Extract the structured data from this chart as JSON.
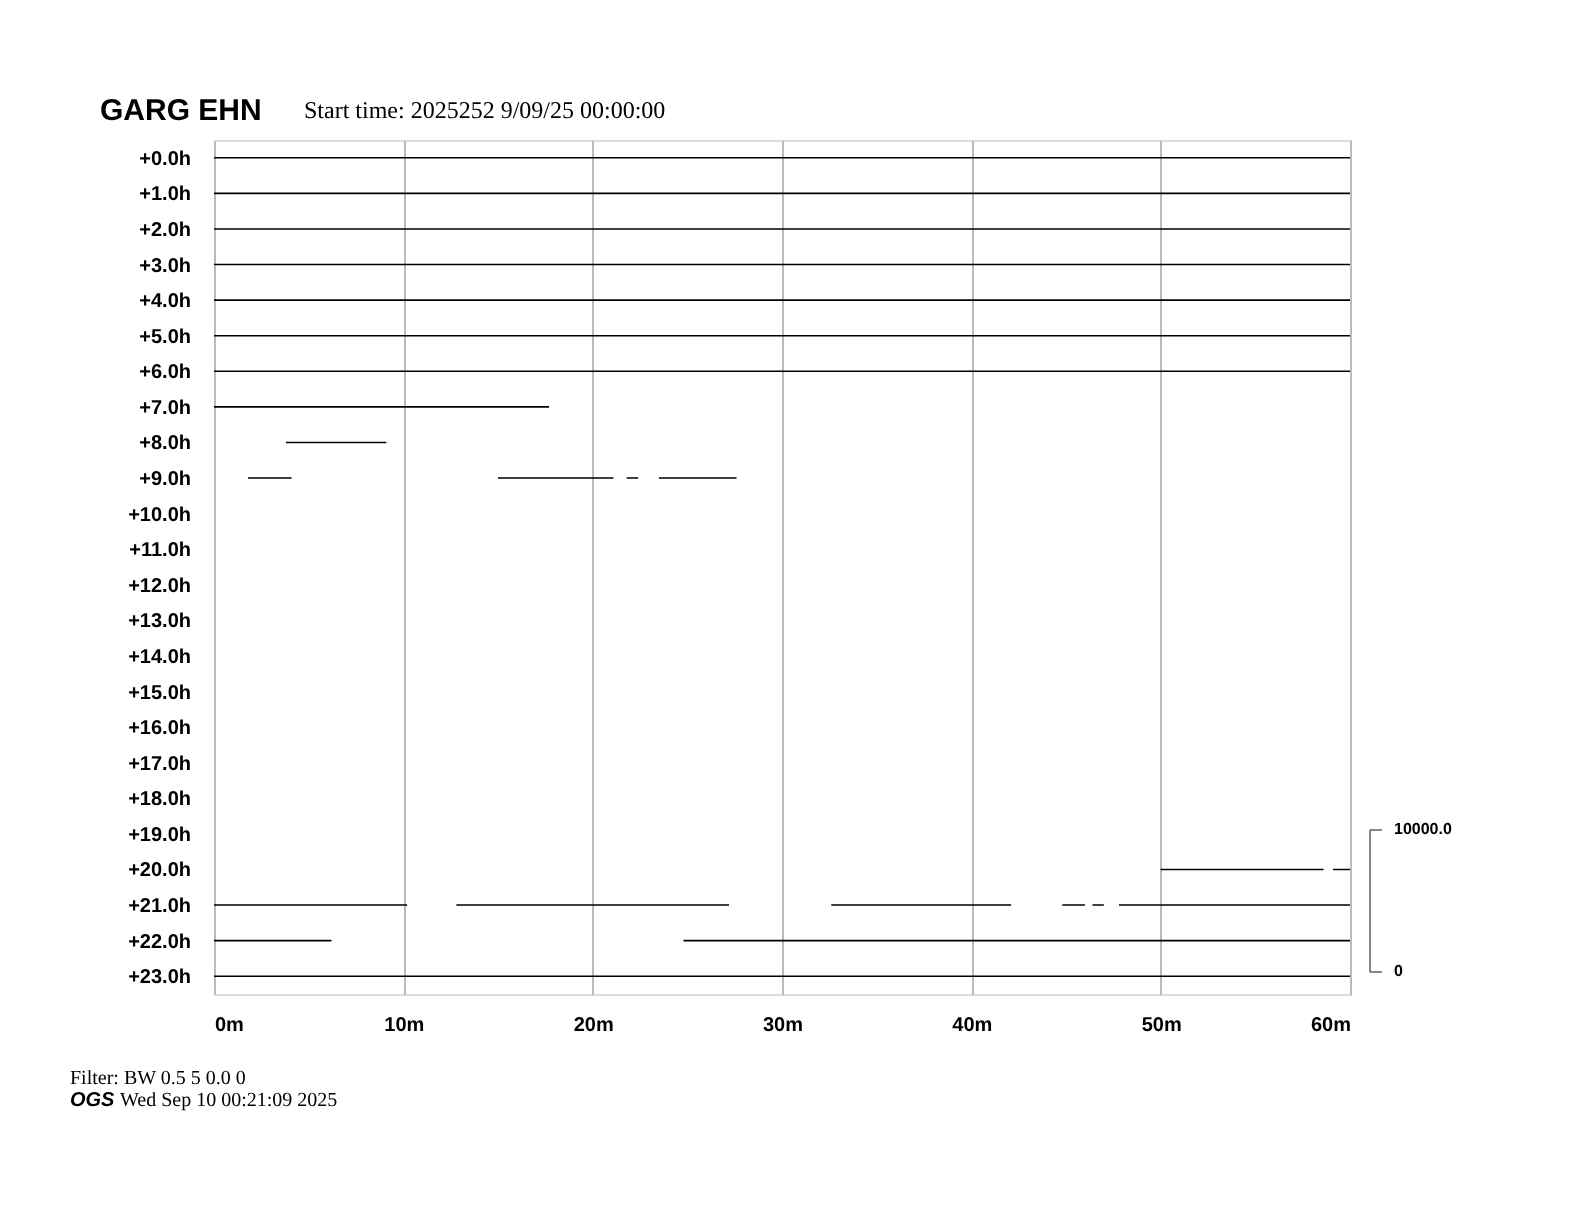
{
  "chart_data": {
    "type": "line",
    "title": "GARG EHN",
    "subtitle": "Start time: 2025252  9/09/25 00:00:00",
    "annotations": [
      "10000.0",
      "0",
      "Filter: BW 0.5 5 0.0 0",
      "OGS",
      "Wed Sep 10 00:21:09 2025"
    ],
    "xlim": [
      0,
      60
    ],
    "xticks": [
      {
        "value": 0,
        "label": "0m"
      },
      {
        "value": 10,
        "label": "10m"
      },
      {
        "value": 20,
        "label": "20m"
      },
      {
        "value": 30,
        "label": "30m"
      },
      {
        "value": 40,
        "label": "40m"
      },
      {
        "value": 50,
        "label": "50m"
      },
      {
        "value": 60,
        "label": "60m"
      }
    ],
    "ylim": [
      23.5,
      -0.5
    ],
    "yticks": [
      {
        "value": 0,
        "label": "+0.0h"
      },
      {
        "value": 1,
        "label": "+1.0h"
      },
      {
        "value": 2,
        "label": "+2.0h"
      },
      {
        "value": 3,
        "label": "+3.0h"
      },
      {
        "value": 4,
        "label": "+4.0h"
      },
      {
        "value": 5,
        "label": "+5.0h"
      },
      {
        "value": 6,
        "label": "+6.0h"
      },
      {
        "value": 7,
        "label": "+7.0h"
      },
      {
        "value": 8,
        "label": "+8.0h"
      },
      {
        "value": 9,
        "label": "+9.0h"
      },
      {
        "value": 10,
        "label": "+10.0h"
      },
      {
        "value": 11,
        "label": "+11.0h"
      },
      {
        "value": 12,
        "label": "+12.0h"
      },
      {
        "value": 13,
        "label": "+13.0h"
      },
      {
        "value": 14,
        "label": "+14.0h"
      },
      {
        "value": 15,
        "label": "+15.0h"
      },
      {
        "value": 16,
        "label": "+16.0h"
      },
      {
        "value": 17,
        "label": "+17.0h"
      },
      {
        "value": 18,
        "label": "+18.0h"
      },
      {
        "value": 19,
        "label": "+19.0h"
      },
      {
        "value": 20,
        "label": "+20.0h"
      },
      {
        "value": 21,
        "label": "+21.0h"
      },
      {
        "value": 22,
        "label": "+22.0h"
      },
      {
        "value": 23,
        "label": "+23.0h"
      }
    ],
    "grid": "x",
    "line_style": "solid",
    "series": [
      {
        "color": "#000000",
        "x": [
          0,
          60
        ],
        "values": [
          0,
          0
        ]
      },
      {
        "color": "#000000",
        "x": [
          0,
          60
        ],
        "values": [
          1,
          1
        ]
      },
      {
        "color": "#000000",
        "x": [
          0,
          60
        ],
        "values": [
          2,
          2
        ]
      },
      {
        "color": "#000000",
        "x": [
          0,
          60
        ],
        "values": [
          3,
          3
        ]
      },
      {
        "color": "#000000",
        "x": [
          0,
          60
        ],
        "values": [
          4,
          4
        ]
      },
      {
        "color": "#000000",
        "x": [
          0,
          60
        ],
        "values": [
          5,
          5
        ]
      },
      {
        "color": "#000000",
        "x": [
          0,
          60
        ],
        "values": [
          6,
          6
        ]
      },
      {
        "color": "#000000",
        "x": [
          0,
          17.7
        ],
        "values": [
          7,
          7
        ]
      },
      {
        "color": "#000000",
        "x": [
          3.8,
          9.1
        ],
        "values": [
          8,
          8
        ]
      },
      {
        "color": "#000000",
        "x": [
          1.8,
          4.1,
          9.5,
          15.0,
          21.1,
          21.5,
          21.8,
          22.4,
          23.0,
          23.5,
          27.6
        ],
        "values": [
          9,
          9,
          null,
          9,
          9,
          null,
          9,
          9,
          null,
          9,
          9
        ]
      },
      {
        "color": "#000000",
        "x": [
          50.0,
          58.6,
          58.9,
          59.1,
          60
        ],
        "values": [
          20,
          20,
          null,
          20,
          20
        ]
      },
      {
        "color": "#000000",
        "x": [
          0,
          10.2,
          11.5,
          12.8,
          27.2,
          30,
          32.6,
          42.1,
          43.5,
          44.8,
          46.0,
          46.2,
          46.4,
          47.0,
          47.4,
          47.8,
          60
        ],
        "values": [
          21,
          21,
          null,
          21,
          21,
          null,
          21,
          21,
          null,
          21,
          21,
          null,
          21,
          21,
          null,
          21,
          21
        ]
      },
      {
        "color": "#000000",
        "x": [
          0,
          6.2,
          15,
          24.8,
          60
        ],
        "values": [
          22,
          22,
          null,
          22,
          22
        ]
      },
      {
        "color": "#000000",
        "x": [
          0,
          60
        ],
        "values": [
          23,
          23
        ]
      }
    ]
  }
}
